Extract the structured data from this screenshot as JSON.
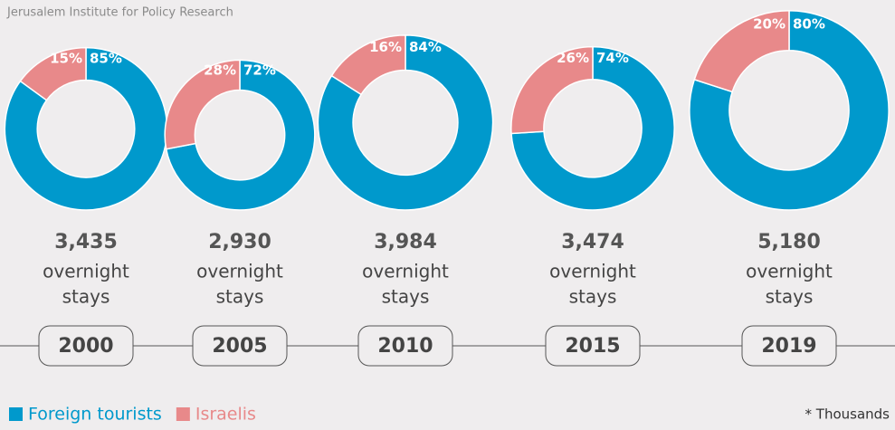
{
  "source": "Jerusalem Institute for Policy Research",
  "note": "* Thousands",
  "chart_data": [
    {
      "type": "donut",
      "title": "2000",
      "categories": [
        "Foreign tourists",
        "Israelis"
      ],
      "values": [
        85,
        15
      ],
      "value_labels": [
        "85%",
        "15%"
      ],
      "colors": [
        "#0099cc",
        "#e8898a"
      ],
      "total": {
        "value": 3435,
        "label": "3,435"
      },
      "subtitle": [
        "overnight",
        "stays"
      ]
    },
    {
      "type": "donut",
      "title": "2005",
      "categories": [
        "Foreign tourists",
        "Israelis"
      ],
      "values": [
        72,
        28
      ],
      "value_labels": [
        "72%",
        "28%"
      ],
      "colors": [
        "#0099cc",
        "#e8898a"
      ],
      "total": {
        "value": 2930,
        "label": "2,930"
      },
      "subtitle": [
        "overnight",
        "stays"
      ]
    },
    {
      "type": "donut",
      "title": "2010",
      "categories": [
        "Foreign tourists",
        "Israelis"
      ],
      "values": [
        84,
        16
      ],
      "value_labels": [
        "84%",
        "16%"
      ],
      "colors": [
        "#0099cc",
        "#e8898a"
      ],
      "total": {
        "value": 3984,
        "label": "3,984"
      },
      "subtitle": [
        "overnight",
        "stays"
      ]
    },
    {
      "type": "donut",
      "title": "2015",
      "categories": [
        "Foreign tourists",
        "Israelis"
      ],
      "values": [
        74,
        26
      ],
      "value_labels": [
        "74%",
        "26%"
      ],
      "colors": [
        "#0099cc",
        "#e8898a"
      ],
      "total": {
        "value": 3474,
        "label": "3,474"
      },
      "subtitle": [
        "overnight",
        "stays"
      ]
    },
    {
      "type": "donut",
      "title": "2019",
      "categories": [
        "Foreign tourists",
        "Israelis"
      ],
      "values": [
        80,
        20
      ],
      "value_labels": [
        "80%",
        "20%"
      ],
      "colors": [
        "#0099cc",
        "#e8898a"
      ],
      "total": {
        "value": 5180,
        "label": "5,180"
      },
      "subtitle": [
        "overnight",
        "stays"
      ]
    }
  ]
}
